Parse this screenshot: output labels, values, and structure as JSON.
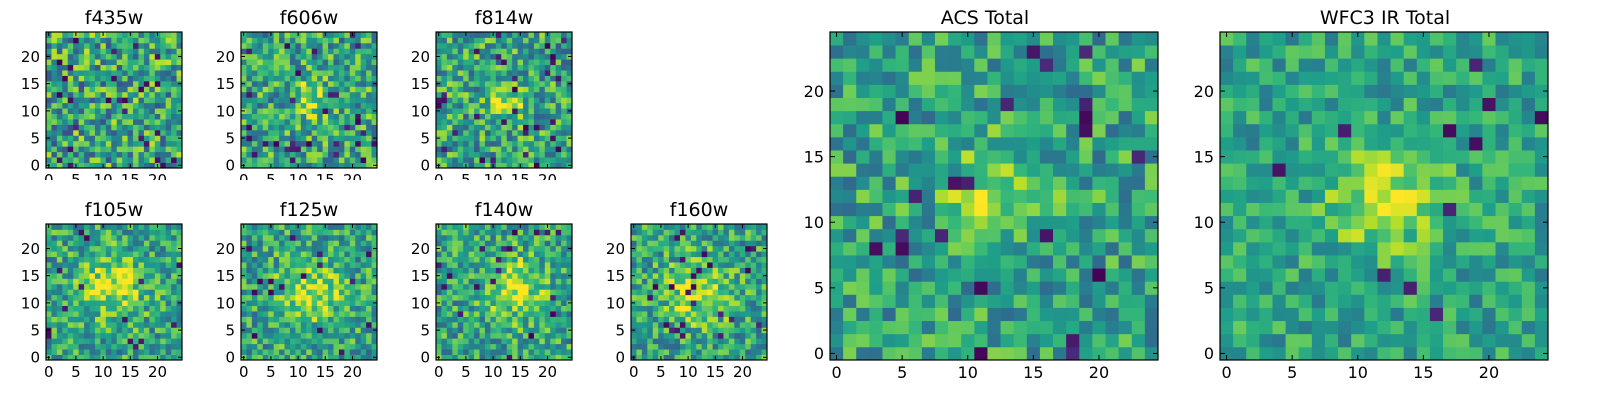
{
  "figure": {
    "colormap": "viridis",
    "pixel_grid": [
      25,
      25
    ]
  },
  "chart_data": [
    {
      "type": "heatmap",
      "title": "f435w",
      "xlim": [
        0,
        24
      ],
      "ylim": [
        0,
        24
      ],
      "xticks": [
        "0",
        "5",
        "10",
        "15",
        "20"
      ],
      "yticks": [
        "0",
        "5",
        "10",
        "15",
        "20"
      ],
      "xlabel": "",
      "ylabel": "",
      "grid": false,
      "source_shape": {
        "center": [
          12,
          12
        ],
        "sigma": 3.0,
        "amplitude": 0.0
      },
      "noise_amplitude": 0.45,
      "dark_pixel_fraction": 0.05
    },
    {
      "type": "heatmap",
      "title": "f606w",
      "xlim": [
        0,
        24
      ],
      "ylim": [
        0,
        24
      ],
      "xticks": [
        "0",
        "5",
        "10",
        "15",
        "20"
      ],
      "yticks": [
        "0",
        "5",
        "10",
        "15",
        "20"
      ],
      "xlabel": "",
      "ylabel": "",
      "grid": false,
      "source_shape": {
        "center": [
          12,
          12
        ],
        "sigma": 2.5,
        "amplitude": 0.3
      },
      "noise_amplitude": 0.4,
      "dark_pixel_fraction": 0.04
    },
    {
      "type": "heatmap",
      "title": "f814w",
      "xlim": [
        0,
        24
      ],
      "ylim": [
        0,
        24
      ],
      "xticks": [
        "0",
        "5",
        "10",
        "15",
        "20"
      ],
      "yticks": [
        "0",
        "5",
        "10",
        "15",
        "20"
      ],
      "xlabel": "",
      "ylabel": "",
      "grid": false,
      "source_shape": {
        "center": [
          13,
          12
        ],
        "sigma": 2.5,
        "amplitude": 0.3
      },
      "noise_amplitude": 0.4,
      "dark_pixel_fraction": 0.04
    },
    {
      "type": "heatmap",
      "title": "f105w",
      "xlim": [
        0,
        24
      ],
      "ylim": [
        0,
        24
      ],
      "xticks": [
        "0",
        "5",
        "10",
        "15",
        "20"
      ],
      "yticks": [
        "0",
        "5",
        "10",
        "15",
        "20"
      ],
      "xlabel": "",
      "ylabel": "",
      "grid": false,
      "source_shape": {
        "center": [
          12,
          13
        ],
        "sigma": 4.0,
        "amplitude": 0.35
      },
      "noise_amplitude": 0.35,
      "dark_pixel_fraction": 0.03
    },
    {
      "type": "heatmap",
      "title": "f125w",
      "xlim": [
        0,
        24
      ],
      "ylim": [
        0,
        24
      ],
      "xticks": [
        "0",
        "5",
        "10",
        "15",
        "20"
      ],
      "yticks": [
        "0",
        "5",
        "10",
        "15",
        "20"
      ],
      "xlabel": "",
      "ylabel": "",
      "grid": false,
      "source_shape": {
        "center": [
          12,
          12
        ],
        "sigma": 4.0,
        "amplitude": 0.35
      },
      "noise_amplitude": 0.35,
      "dark_pixel_fraction": 0.03
    },
    {
      "type": "heatmap",
      "title": "f140w",
      "xlim": [
        0,
        24
      ],
      "ylim": [
        0,
        24
      ],
      "xticks": [
        "0",
        "5",
        "10",
        "15",
        "20"
      ],
      "yticks": [
        "0",
        "5",
        "10",
        "15",
        "20"
      ],
      "xlabel": "",
      "ylabel": "",
      "grid": false,
      "source_shape": {
        "center": [
          14,
          13
        ],
        "sigma": 4.0,
        "amplitude": 0.35
      },
      "noise_amplitude": 0.35,
      "dark_pixel_fraction": 0.03
    },
    {
      "type": "heatmap",
      "title": "f160w",
      "xlim": [
        0,
        24
      ],
      "ylim": [
        0,
        24
      ],
      "xticks": [
        "0",
        "5",
        "10",
        "15",
        "20"
      ],
      "yticks": [
        "0",
        "5",
        "10",
        "15",
        "20"
      ],
      "xlabel": "",
      "ylabel": "",
      "grid": false,
      "source_shape": {
        "center": [
          12,
          12
        ],
        "sigma": 4.0,
        "amplitude": 0.35
      },
      "noise_amplitude": 0.35,
      "dark_pixel_fraction": 0.03
    },
    {
      "type": "heatmap",
      "title": "ACS Total",
      "xlim": [
        0,
        24
      ],
      "ylim": [
        0,
        24
      ],
      "xticks": [
        "0",
        "5",
        "10",
        "15",
        "20"
      ],
      "yticks": [
        "0",
        "5",
        "10",
        "15",
        "20"
      ],
      "xlabel": "",
      "ylabel": "",
      "grid": false,
      "source_shape": {
        "center": [
          12,
          12
        ],
        "sigma": 2.5,
        "amplitude": 0.3
      },
      "noise_amplitude": 0.32,
      "dark_pixel_fraction": 0.025
    },
    {
      "type": "heatmap",
      "title": "WFC3 IR Total",
      "xlim": [
        0,
        24
      ],
      "ylim": [
        0,
        24
      ],
      "xticks": [
        "0",
        "5",
        "10",
        "15",
        "20"
      ],
      "yticks": [
        "0",
        "5",
        "10",
        "15",
        "20"
      ],
      "xlabel": "",
      "ylabel": "",
      "grid": false,
      "source_shape": {
        "center": [
          12,
          12
        ],
        "sigma": 3.0,
        "amplitude": 0.35
      },
      "noise_amplitude": 0.25,
      "dark_pixel_fraction": 0.015
    }
  ]
}
